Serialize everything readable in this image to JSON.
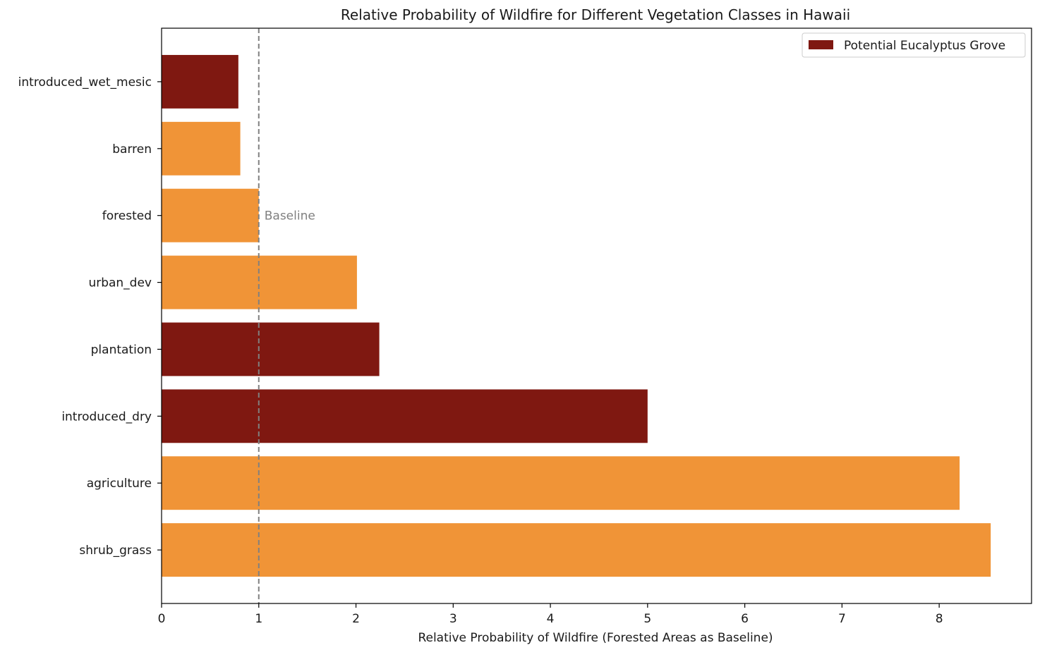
{
  "chart_data": {
    "type": "bar",
    "orientation": "horizontal",
    "title": "Relative Probability of Wildfire for Different Vegetation Classes in Hawaii",
    "xlabel": "Relative Probability of Wildfire (Forested Areas as Baseline)",
    "ylabel": "",
    "xlim": [
      0,
      8.95
    ],
    "xticks": [
      "0",
      "1",
      "2",
      "3",
      "4",
      "5",
      "6",
      "7",
      "8"
    ],
    "categories": [
      "introduced_wet_mesic",
      "barren",
      "forested",
      "urban_dev",
      "plantation",
      "introduced_dry",
      "agriculture",
      "shrub_grass"
    ],
    "values": [
      0.79,
      0.81,
      1.0,
      2.01,
      2.24,
      5.0,
      8.21,
      8.53
    ],
    "highlight": [
      true,
      false,
      false,
      false,
      true,
      true,
      false,
      false
    ],
    "colors": {
      "highlight": "#7f1811",
      "default": "#f09437",
      "baseline": "#808080"
    },
    "baseline": {
      "value": 1,
      "label": "Baseline"
    },
    "legend": {
      "position": "top-right",
      "entries": [
        {
          "label": "Potential Eucalyptus Grove",
          "color": "#7f1811"
        }
      ]
    },
    "grid": false
  }
}
